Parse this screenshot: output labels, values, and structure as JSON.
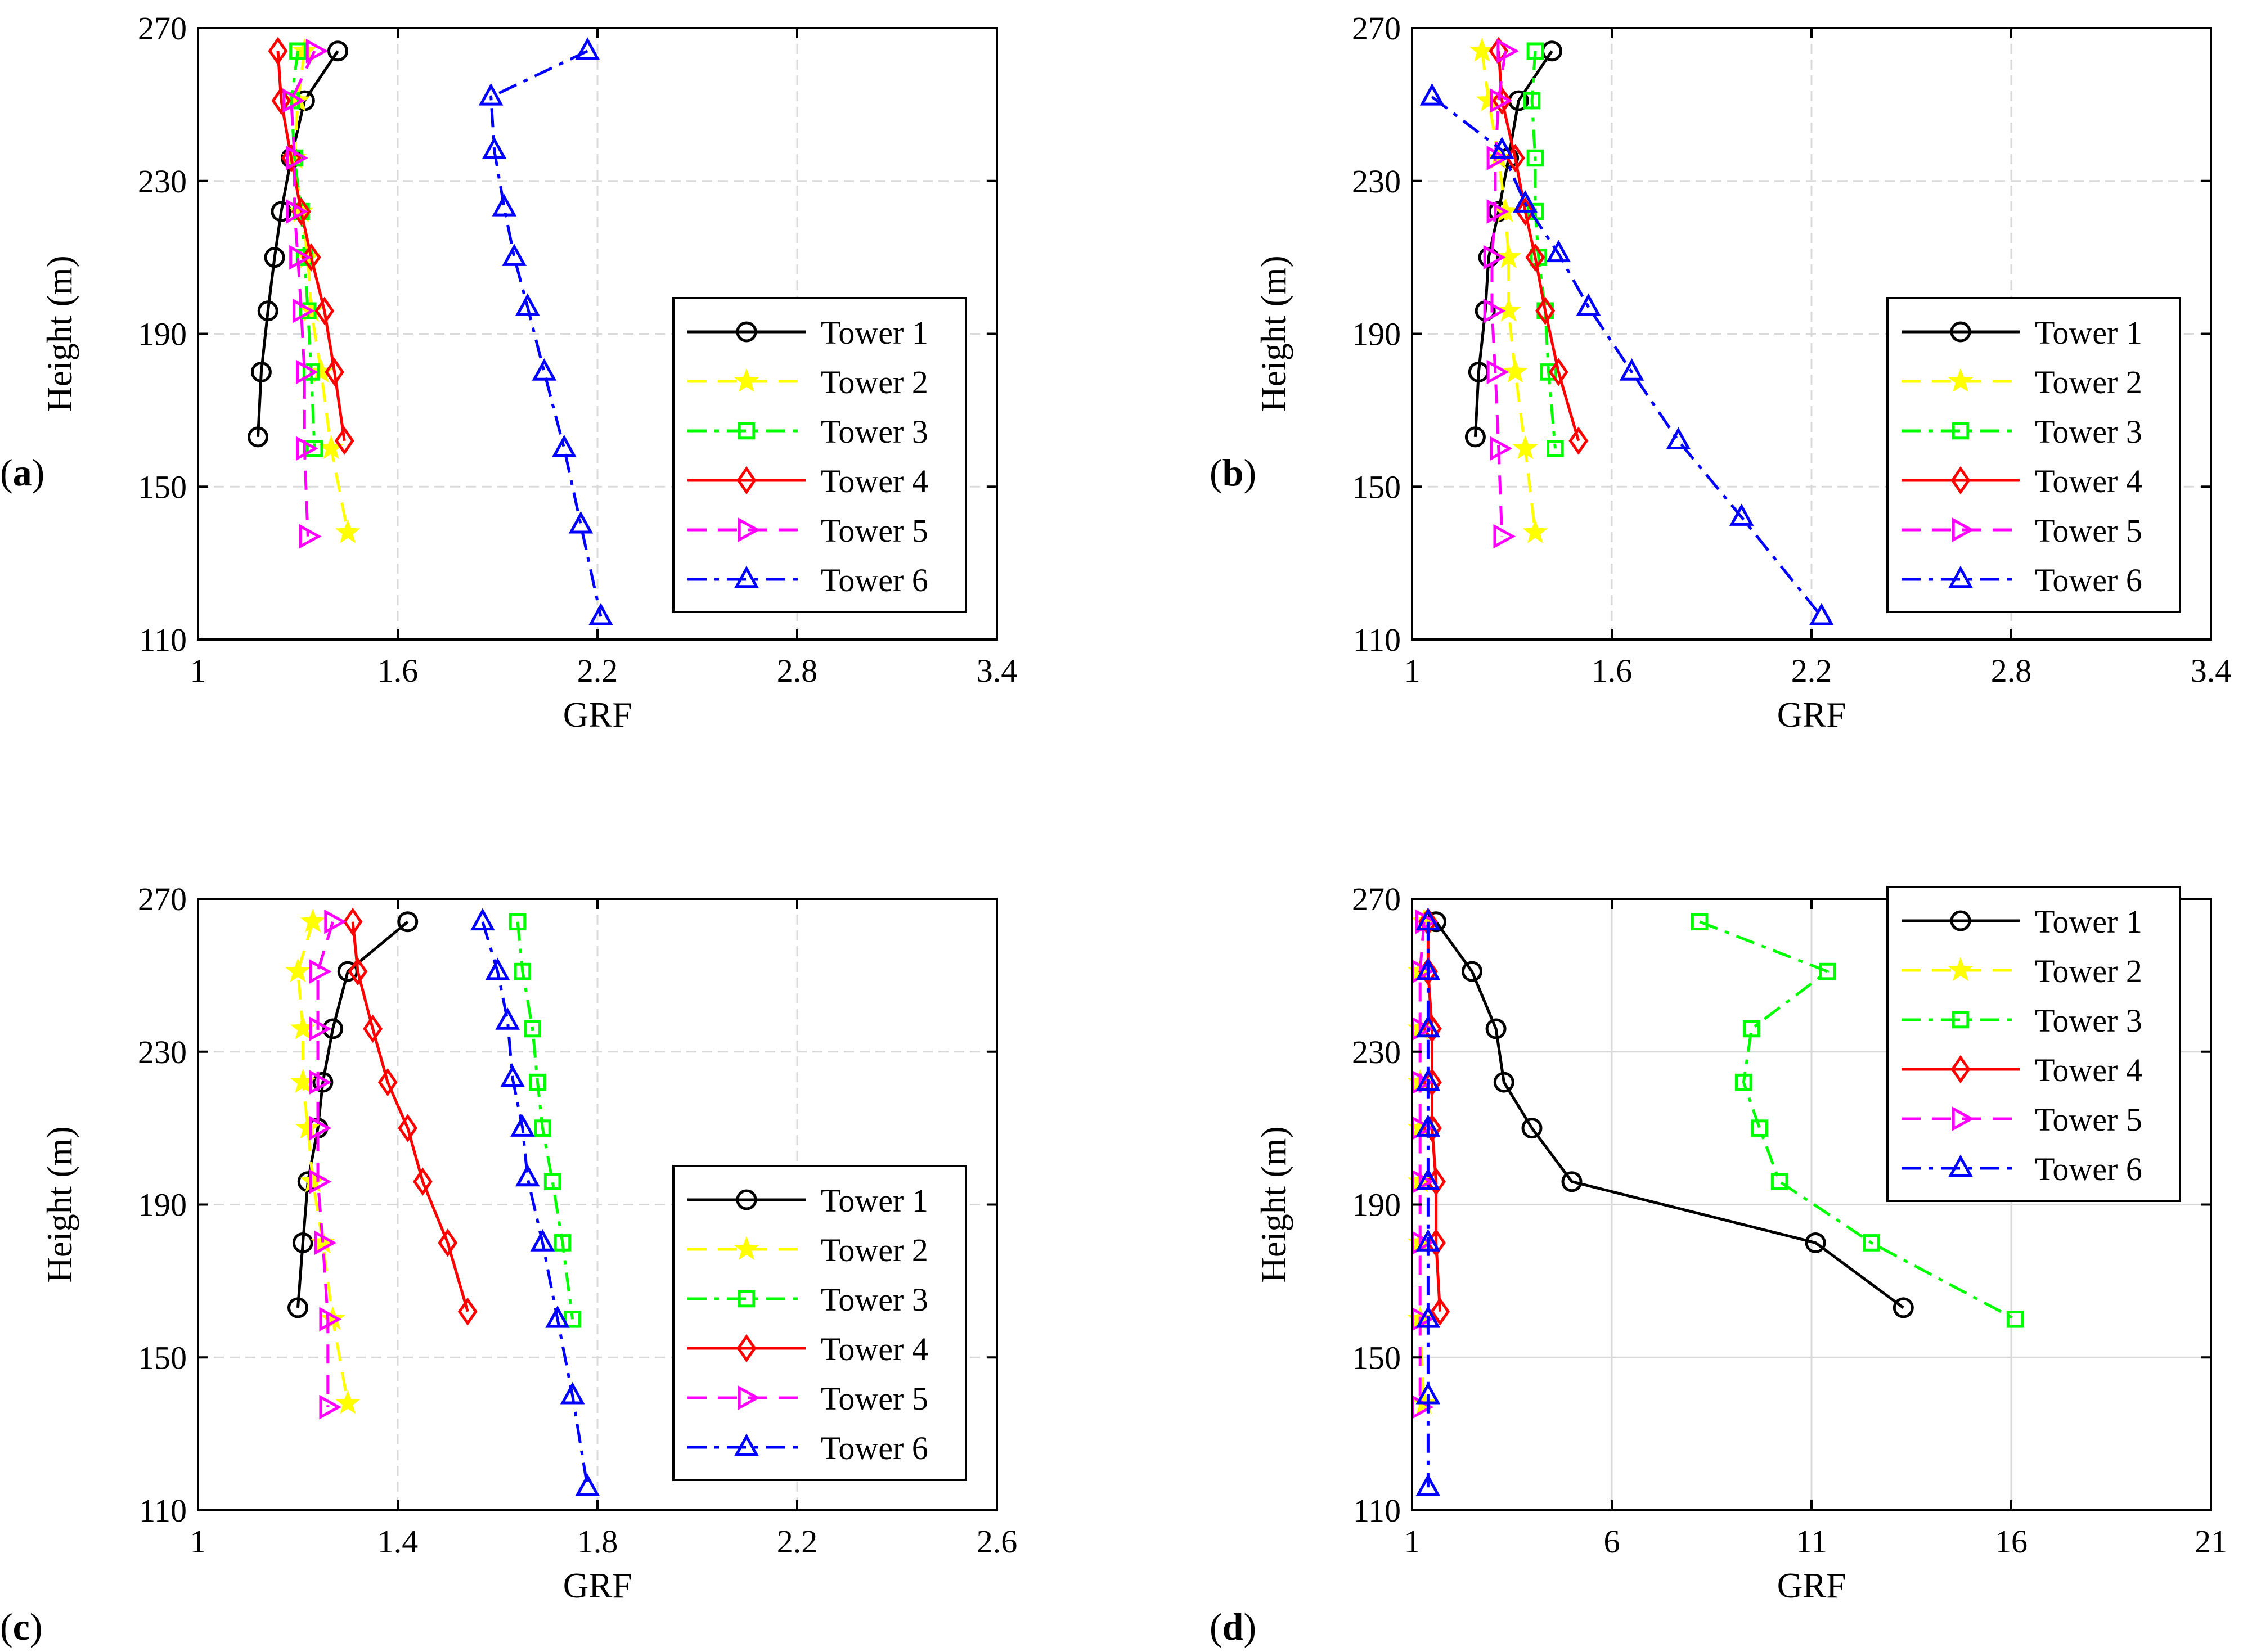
{
  "figure": {
    "panel_labels": [
      "a",
      "b",
      "c",
      "d"
    ]
  },
  "chart_data": [
    {
      "type": "line",
      "panel": "a",
      "xlabel": "GRF",
      "ylabel": "Height (m)",
      "xlim": [
        1,
        3.4
      ],
      "ylim": [
        110,
        270
      ],
      "xticks": [
        1,
        1.6,
        2.2,
        2.8,
        3.4
      ],
      "xtick_labels": [
        "1",
        "1.6",
        "2.2",
        "2.8",
        "3.4"
      ],
      "yticks": [
        110,
        150,
        190,
        230,
        270
      ],
      "ytick_labels": [
        "110",
        "150",
        "190",
        "230",
        "270"
      ],
      "grid": true,
      "legend": "right",
      "series": [
        {
          "name": "Tower 1",
          "color": "#000000",
          "dash": "solid",
          "marker": "circle",
          "x": [
            1.42,
            1.32,
            1.28,
            1.25,
            1.23,
            1.21,
            1.19,
            1.18
          ],
          "y": [
            264,
            251,
            236,
            222,
            210,
            196,
            180,
            163
          ]
        },
        {
          "name": "Tower 2",
          "color": "#ffff00",
          "dash": "dash",
          "marker": "star",
          "x": [
            1.32,
            1.3,
            1.29,
            1.31,
            1.33,
            1.34,
            1.37,
            1.4,
            1.45
          ],
          "y": [
            264,
            251,
            236,
            222,
            210,
            196,
            180,
            160,
            138
          ]
        },
        {
          "name": "Tower 3",
          "color": "#00ff00",
          "dash": "dashdot",
          "marker": "square",
          "x": [
            1.3,
            1.28,
            1.29,
            1.31,
            1.32,
            1.33,
            1.34,
            1.35
          ],
          "y": [
            264,
            251,
            236,
            222,
            210,
            196,
            180,
            160
          ]
        },
        {
          "name": "Tower 4",
          "color": "#ff0000",
          "dash": "solid",
          "marker": "diamond",
          "x": [
            1.24,
            1.25,
            1.28,
            1.31,
            1.34,
            1.38,
            1.41,
            1.44
          ],
          "y": [
            264,
            251,
            236,
            222,
            210,
            196,
            180,
            162
          ]
        },
        {
          "name": "Tower 5",
          "color": "#ff00ff",
          "dash": "dash",
          "marker": "triangle-right",
          "x": [
            1.35,
            1.28,
            1.29,
            1.29,
            1.3,
            1.31,
            1.32,
            1.32,
            1.33
          ],
          "y": [
            264,
            251,
            236,
            222,
            210,
            196,
            180,
            160,
            137
          ]
        },
        {
          "name": "Tower 6",
          "color": "#0000ff",
          "dash": "dashdot",
          "marker": "triangle-up",
          "x": [
            2.17,
            1.88,
            1.89,
            1.92,
            1.95,
            1.99,
            2.04,
            2.1,
            2.15,
            2.21
          ],
          "y": [
            264,
            252,
            238,
            223,
            210,
            197,
            180,
            160,
            140,
            116
          ]
        }
      ]
    },
    {
      "type": "line",
      "panel": "b",
      "xlabel": "GRF",
      "ylabel": "Height (m)",
      "xlim": [
        1,
        3.4
      ],
      "ylim": [
        110,
        270
      ],
      "xticks": [
        1,
        1.6,
        2.2,
        2.8,
        3.4
      ],
      "xtick_labels": [
        "1",
        "1.6",
        "2.2",
        "2.8",
        "3.4"
      ],
      "yticks": [
        110,
        150,
        190,
        230,
        270
      ],
      "ytick_labels": [
        "110",
        "150",
        "190",
        "230",
        "270"
      ],
      "grid": true,
      "legend": "right",
      "series": [
        {
          "name": "Tower 1",
          "color": "#000000",
          "dash": "solid",
          "marker": "circle",
          "x": [
            1.42,
            1.32,
            1.29,
            1.26,
            1.23,
            1.22,
            1.2,
            1.19
          ],
          "y": [
            264,
            251,
            236,
            222,
            210,
            196,
            180,
            163
          ]
        },
        {
          "name": "Tower 2",
          "color": "#ffff00",
          "dash": "dash",
          "marker": "star",
          "x": [
            1.21,
            1.23,
            1.26,
            1.28,
            1.29,
            1.29,
            1.31,
            1.34,
            1.37
          ],
          "y": [
            264,
            251,
            236,
            222,
            210,
            196,
            180,
            160,
            138
          ]
        },
        {
          "name": "Tower 3",
          "color": "#00ff00",
          "dash": "dashdot",
          "marker": "square",
          "x": [
            1.37,
            1.36,
            1.37,
            1.37,
            1.38,
            1.4,
            1.41,
            1.43
          ],
          "y": [
            264,
            251,
            236,
            222,
            210,
            196,
            180,
            160
          ]
        },
        {
          "name": "Tower 4",
          "color": "#ff0000",
          "dash": "solid",
          "marker": "diamond",
          "x": [
            1.26,
            1.27,
            1.31,
            1.34,
            1.37,
            1.4,
            1.44,
            1.5
          ],
          "y": [
            264,
            251,
            236,
            222,
            210,
            196,
            180,
            162
          ]
        },
        {
          "name": "Tower 5",
          "color": "#ff00ff",
          "dash": "dash",
          "marker": "triangle-right",
          "x": [
            1.28,
            1.26,
            1.25,
            1.25,
            1.24,
            1.24,
            1.25,
            1.26,
            1.27
          ],
          "y": [
            264,
            251,
            236,
            222,
            210,
            196,
            180,
            160,
            137
          ]
        },
        {
          "name": "Tower 6",
          "color": "#0000ff",
          "dash": "dashdot",
          "marker": "triangle-up",
          "x": [
            1.06,
            1.27,
            1.34,
            1.44,
            1.53,
            1.66,
            1.8,
            1.99,
            2.23
          ],
          "y": [
            252,
            238,
            224,
            211,
            197,
            180,
            162,
            142,
            116
          ]
        }
      ]
    },
    {
      "type": "line",
      "panel": "c",
      "xlabel": "GRF",
      "ylabel": "Height (m)",
      "xlim": [
        1,
        2.6
      ],
      "ylim": [
        110,
        270
      ],
      "xticks": [
        1,
        1.4,
        1.8,
        2.2,
        2.6
      ],
      "xtick_labels": [
        "1",
        "1.4",
        "1.8",
        "2.2",
        "2.6"
      ],
      "yticks": [
        110,
        150,
        190,
        230,
        270
      ],
      "ytick_labels": [
        "110",
        "150",
        "190",
        "230",
        "270"
      ],
      "grid": true,
      "legend": "right",
      "series": [
        {
          "name": "Tower 1",
          "color": "#000000",
          "dash": "solid",
          "marker": "circle",
          "x": [
            1.42,
            1.3,
            1.27,
            1.25,
            1.24,
            1.22,
            1.21,
            1.2
          ],
          "y": [
            264,
            251,
            236,
            222,
            210,
            196,
            180,
            163
          ]
        },
        {
          "name": "Tower 2",
          "color": "#ffff00",
          "dash": "dash",
          "marker": "star",
          "x": [
            1.23,
            1.2,
            1.21,
            1.21,
            1.22,
            1.23,
            1.25,
            1.27,
            1.3
          ],
          "y": [
            264,
            251,
            236,
            222,
            210,
            196,
            180,
            160,
            138
          ]
        },
        {
          "name": "Tower 3",
          "color": "#00ff00",
          "dash": "dashdot",
          "marker": "square",
          "x": [
            1.64,
            1.65,
            1.67,
            1.68,
            1.69,
            1.71,
            1.73,
            1.75
          ],
          "y": [
            264,
            251,
            236,
            222,
            210,
            196,
            180,
            160
          ]
        },
        {
          "name": "Tower 4",
          "color": "#ff0000",
          "dash": "solid",
          "marker": "diamond",
          "x": [
            1.31,
            1.32,
            1.35,
            1.38,
            1.42,
            1.45,
            1.5,
            1.54
          ],
          "y": [
            264,
            251,
            236,
            222,
            210,
            196,
            180,
            162
          ]
        },
        {
          "name": "Tower 5",
          "color": "#ff00ff",
          "dash": "dash",
          "marker": "triangle-right",
          "x": [
            1.27,
            1.24,
            1.24,
            1.24,
            1.24,
            1.24,
            1.25,
            1.26,
            1.26
          ],
          "y": [
            264,
            251,
            236,
            222,
            210,
            196,
            180,
            160,
            137
          ]
        },
        {
          "name": "Tower 6",
          "color": "#0000ff",
          "dash": "dashdot",
          "marker": "triangle-up",
          "x": [
            1.57,
            1.6,
            1.62,
            1.63,
            1.65,
            1.66,
            1.69,
            1.72,
            1.75,
            1.78
          ],
          "y": [
            264,
            251,
            238,
            223,
            210,
            197,
            180,
            160,
            140,
            116
          ]
        }
      ]
    },
    {
      "type": "line",
      "panel": "d",
      "xlabel": "GRF",
      "ylabel": "Height (m)",
      "xlim": [
        1,
        21
      ],
      "ylim": [
        110,
        270
      ],
      "xticks": [
        1,
        6,
        11,
        16,
        21
      ],
      "xtick_labels": [
        "1",
        "6",
        "11",
        "16",
        "21"
      ],
      "yticks": [
        110,
        150,
        190,
        230,
        270
      ],
      "ytick_labels": [
        "110",
        "150",
        "190",
        "230",
        "270"
      ],
      "grid": true,
      "legend": "top-right",
      "series": [
        {
          "name": "Tower 1",
          "color": "#000000",
          "dash": "solid",
          "marker": "circle",
          "x": [
            1.6,
            2.5,
            3.1,
            3.3,
            4.0,
            5.0,
            11.1,
            13.3
          ],
          "y": [
            264,
            251,
            236,
            222,
            210,
            196,
            180,
            163
          ]
        },
        {
          "name": "Tower 2",
          "color": "#ffff00",
          "dash": "dash",
          "marker": "star",
          "x": [
            1.3,
            1.2,
            1.2,
            1.2,
            1.2,
            1.2,
            1.2,
            1.2,
            1.3
          ],
          "y": [
            264,
            251,
            236,
            222,
            210,
            196,
            180,
            160,
            138
          ]
        },
        {
          "name": "Tower 3",
          "color": "#00ff00",
          "dash": "dashdot",
          "marker": "square",
          "x": [
            8.2,
            11.4,
            9.5,
            9.3,
            9.7,
            10.2,
            12.5,
            16.1
          ],
          "y": [
            264,
            251,
            236,
            222,
            210,
            196,
            180,
            160
          ]
        },
        {
          "name": "Tower 4",
          "color": "#ff0000",
          "dash": "solid",
          "marker": "diamond",
          "x": [
            1.4,
            1.4,
            1.5,
            1.5,
            1.5,
            1.6,
            1.6,
            1.7
          ],
          "y": [
            264,
            251,
            236,
            222,
            210,
            196,
            180,
            162
          ]
        },
        {
          "name": "Tower 5",
          "color": "#ff00ff",
          "dash": "dash",
          "marker": "triangle-right",
          "x": [
            1.3,
            1.2,
            1.2,
            1.2,
            1.2,
            1.2,
            1.2,
            1.2,
            1.2
          ],
          "y": [
            264,
            251,
            236,
            222,
            210,
            196,
            180,
            160,
            137
          ]
        },
        {
          "name": "Tower 6",
          "color": "#0000ff",
          "dash": "dashdot",
          "marker": "triangle-up",
          "x": [
            1.4,
            1.4,
            1.4,
            1.4,
            1.4,
            1.4,
            1.4,
            1.4,
            1.4,
            1.4
          ],
          "y": [
            264,
            251,
            236,
            222,
            210,
            196,
            180,
            160,
            140,
            116
          ]
        }
      ]
    }
  ]
}
